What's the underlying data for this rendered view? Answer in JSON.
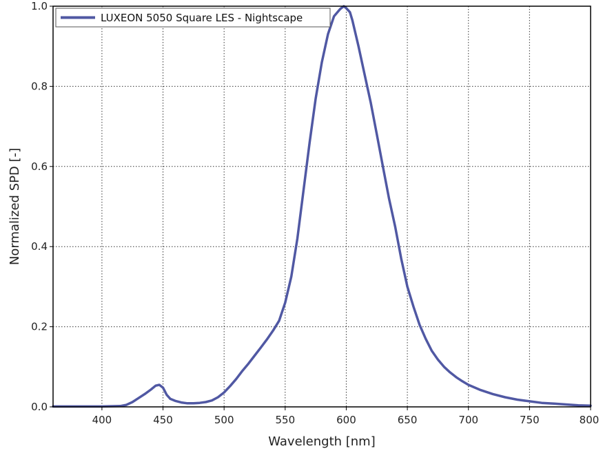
{
  "chart_data": {
    "type": "line",
    "title": "",
    "xlabel": "Wavelength [nm]",
    "ylabel": "Normalized SPD [-]",
    "xlim": [
      360,
      800
    ],
    "ylim": [
      0,
      1.0
    ],
    "x_ticks": [
      400,
      450,
      500,
      550,
      600,
      650,
      700,
      750,
      800
    ],
    "y_ticks": [
      0.0,
      0.2,
      0.4,
      0.6,
      0.8,
      1.0
    ],
    "x_tick_labels": [
      "400",
      "450",
      "500",
      "550",
      "600",
      "650",
      "700",
      "750",
      "800"
    ],
    "y_tick_labels": [
      "0.0",
      "0.2",
      "0.4",
      "0.6",
      "0.8",
      "1.0"
    ],
    "grid": true,
    "legend_position": "top-left",
    "series": [
      {
        "name": "LUXEON 5050 Square LES - Nightscape",
        "color": "#5058a3",
        "x": [
          360,
          380,
          400,
          415,
          420,
          425,
          430,
          435,
          440,
          444,
          447,
          450,
          453,
          456,
          460,
          465,
          470,
          475,
          480,
          485,
          490,
          495,
          500,
          505,
          510,
          515,
          520,
          525,
          530,
          535,
          540,
          545,
          550,
          555,
          560,
          565,
          570,
          575,
          580,
          585,
          590,
          595,
          598,
          600,
          603,
          605,
          610,
          615,
          620,
          625,
          630,
          635,
          640,
          645,
          650,
          655,
          660,
          665,
          670,
          675,
          680,
          685,
          690,
          695,
          700,
          710,
          720,
          730,
          740,
          750,
          760,
          770,
          780,
          790,
          800
        ],
        "y": [
          0.001,
          0.001,
          0.001,
          0.002,
          0.005,
          0.012,
          0.022,
          0.032,
          0.043,
          0.053,
          0.055,
          0.048,
          0.03,
          0.02,
          0.015,
          0.011,
          0.009,
          0.009,
          0.01,
          0.012,
          0.016,
          0.024,
          0.036,
          0.052,
          0.07,
          0.09,
          0.108,
          0.128,
          0.148,
          0.168,
          0.19,
          0.215,
          0.26,
          0.325,
          0.42,
          0.54,
          0.66,
          0.77,
          0.86,
          0.93,
          0.975,
          0.993,
          1.0,
          0.995,
          0.985,
          0.965,
          0.9,
          0.83,
          0.76,
          0.68,
          0.6,
          0.52,
          0.45,
          0.37,
          0.3,
          0.25,
          0.205,
          0.17,
          0.14,
          0.118,
          0.1,
          0.086,
          0.074,
          0.064,
          0.055,
          0.042,
          0.032,
          0.024,
          0.018,
          0.014,
          0.01,
          0.008,
          0.006,
          0.004,
          0.003
        ]
      }
    ]
  }
}
